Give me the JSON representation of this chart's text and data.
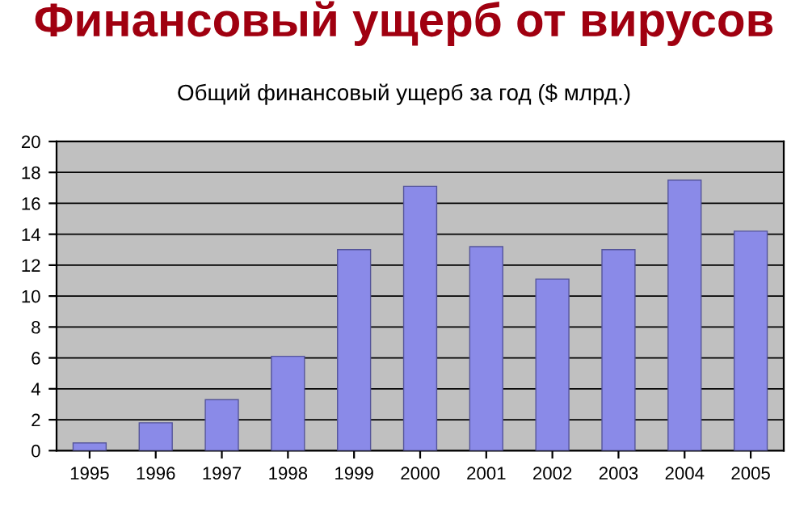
{
  "chart_data": {
    "type": "bar",
    "title": "Финансовый ущерб от вирусов",
    "subtitle": "Общий финансовый ущерб за год ($ млрд.)",
    "categories": [
      "1995",
      "1996",
      "1997",
      "1998",
      "1999",
      "2000",
      "2001",
      "2002",
      "2003",
      "2004",
      "2005"
    ],
    "values": [
      0.5,
      1.8,
      3.3,
      6.1,
      13.0,
      17.1,
      13.2,
      11.1,
      13.0,
      17.5,
      14.2
    ],
    "color": "#8a8ae8",
    "ylim": [
      0,
      20
    ],
    "yticks": [
      0,
      2,
      4,
      6,
      8,
      10,
      12,
      14,
      16,
      18,
      20
    ],
    "grid": "y"
  }
}
